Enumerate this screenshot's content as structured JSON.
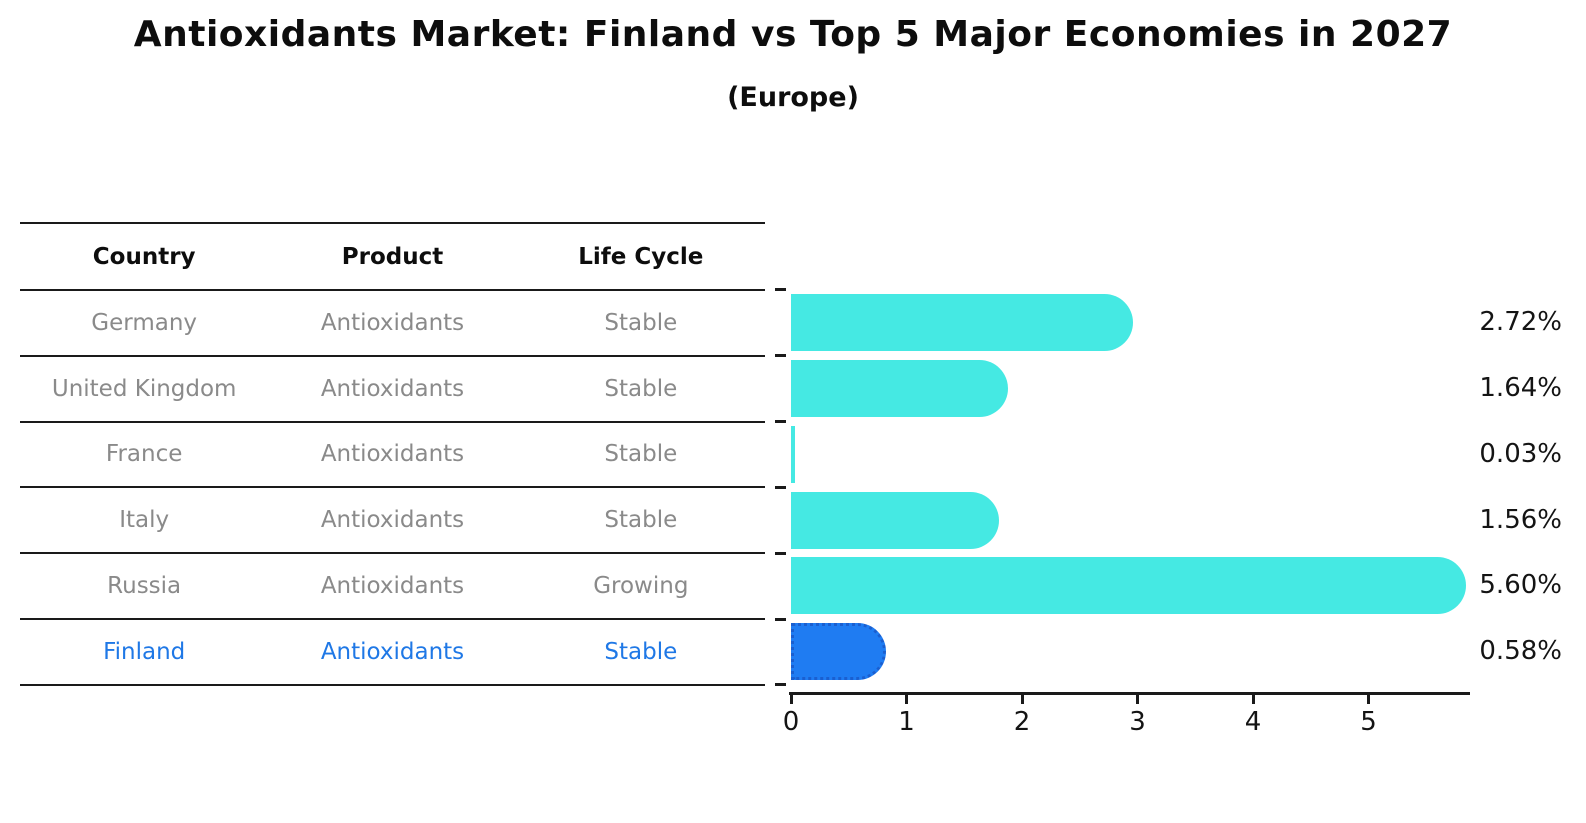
{
  "title": "Antioxidants Market: Finland vs Top 5 Major Economies in 2027",
  "subtitle": "(Europe)",
  "table": {
    "headers": [
      "Country",
      "Product",
      "Life Cycle"
    ],
    "rows": [
      {
        "country": "Germany",
        "product": "Antioxidants",
        "life_cycle": "Stable",
        "highlight": false
      },
      {
        "country": "United Kingdom",
        "product": "Antioxidants",
        "life_cycle": "Stable",
        "highlight": false
      },
      {
        "country": "France",
        "product": "Antioxidants",
        "life_cycle": "Stable",
        "highlight": false
      },
      {
        "country": "Italy",
        "product": "Antioxidants",
        "life_cycle": "Stable",
        "highlight": false
      },
      {
        "country": "Russia",
        "product": "Antioxidants",
        "life_cycle": "Growing",
        "highlight": false
      },
      {
        "country": "Finland",
        "product": "Antioxidants",
        "life_cycle": "Stable",
        "highlight": true
      }
    ]
  },
  "chart_data": {
    "type": "bar",
    "orientation": "horizontal",
    "title": "Antioxidants Market: Finland vs Top 5 Major Economies in 2027",
    "subtitle": "(Europe)",
    "categories": [
      "Germany",
      "United Kingdom",
      "France",
      "Italy",
      "Russia",
      "Finland"
    ],
    "values": [
      2.72,
      1.64,
      0.03,
      1.56,
      5.6,
      0.58
    ],
    "value_labels": [
      "2.72%",
      "1.64%",
      "0.03%",
      "1.56%",
      "5.60%",
      "0.58%"
    ],
    "x_ticks": [
      "0",
      "1",
      "2",
      "3",
      "4",
      "5"
    ],
    "xlim": [
      0,
      5.9
    ],
    "unit": "%",
    "grid": false,
    "legend": "none",
    "bar_color": "#45e9e3",
    "highlight_index": 5,
    "highlight_color": "#1f7cf2",
    "highlight_border_color": "#1a5fd0",
    "highlight_border_style": "dotted"
  },
  "colors": {
    "background": "#ffffff",
    "text_dark": "#0d0d0d",
    "text_gray": "#8a8a8a",
    "highlight_text": "#1f78e6",
    "line": "#1a1a1a"
  }
}
